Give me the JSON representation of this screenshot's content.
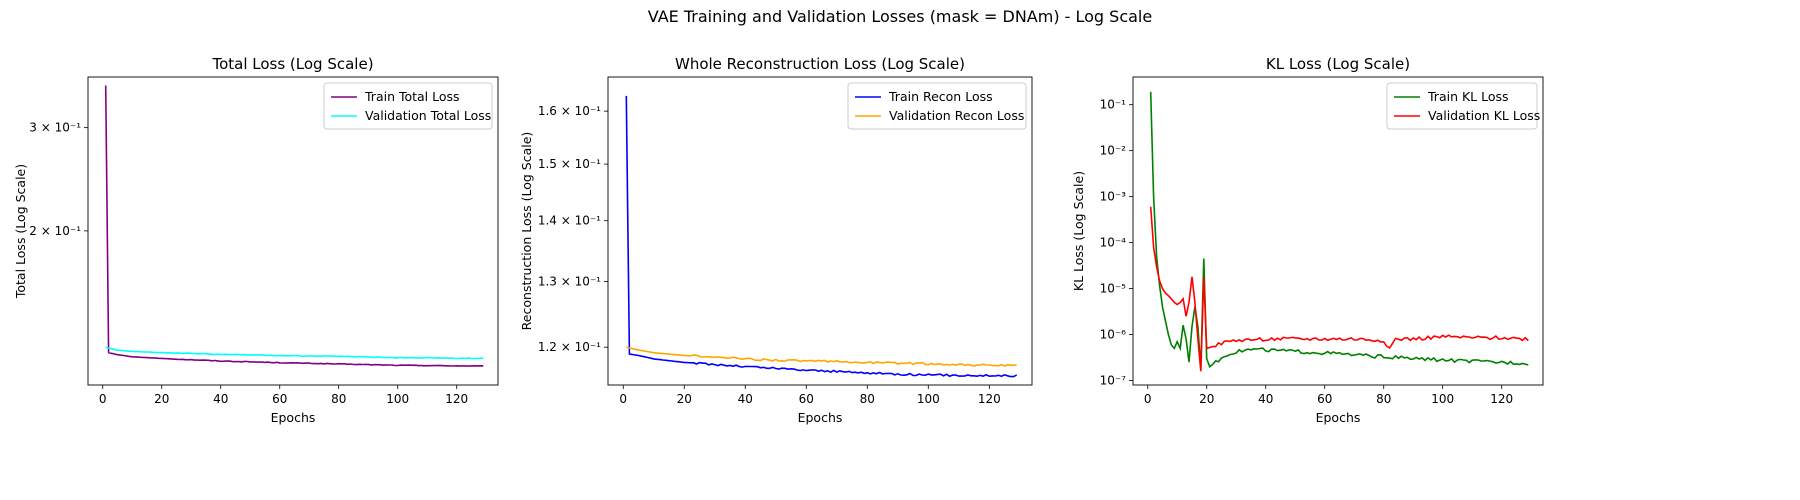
{
  "figure": {
    "suptitle": "VAE Training and Validation Losses (mask = DNAm) - Log Scale"
  },
  "chart_data": [
    {
      "type": "line",
      "title": "Total Loss (Log Scale)",
      "xlabel": "Epochs",
      "ylabel": "Total Loss (Log Scale)",
      "yscale": "log",
      "xlim": [
        -5,
        134
      ],
      "ylim": [
        0.1092,
        0.366
      ],
      "xticks": [
        0,
        20,
        40,
        60,
        80,
        100,
        120
      ],
      "yticks": [
        {
          "value": 0.2,
          "label": "2 × 10⁻¹"
        },
        {
          "value": 0.3,
          "label": "3 × 10⁻¹"
        }
      ],
      "legend": "upper right",
      "series": [
        {
          "name": "Train Total Loss",
          "color": "#800080",
          "keypoints": [
            [
              1,
              0.354
            ],
            [
              2,
              0.124
            ],
            [
              5,
              0.123
            ],
            [
              10,
              0.122
            ],
            [
              20,
              0.1212
            ],
            [
              40,
              0.12
            ],
            [
              60,
              0.1192
            ],
            [
              80,
              0.1186
            ],
            [
              100,
              0.118
            ],
            [
              129,
              0.1176
            ]
          ]
        },
        {
          "name": "Validation Total Loss",
          "color": "#00ffff",
          "keypoints": [
            [
              1,
              0.1266
            ],
            [
              5,
              0.1252
            ],
            [
              10,
              0.1246
            ],
            [
              20,
              0.124
            ],
            [
              40,
              0.1232
            ],
            [
              60,
              0.1226
            ],
            [
              80,
              0.1222
            ],
            [
              100,
              0.1216
            ],
            [
              129,
              0.1212
            ]
          ]
        }
      ]
    },
    {
      "type": "line",
      "title": "Whole Reconstruction Loss (Log Scale)",
      "xlabel": "Epochs",
      "ylabel": "Reconstruction Loss (Log Scale)",
      "yscale": "log",
      "xlim": [
        -5,
        134
      ],
      "ylim": [
        0.1146,
        0.1668
      ],
      "xticks": [
        0,
        20,
        40,
        60,
        80,
        100,
        120
      ],
      "yticks": [
        {
          "value": 0.12,
          "label": "1.2 × 10⁻¹"
        },
        {
          "value": 0.13,
          "label": "1.3 × 10⁻¹"
        },
        {
          "value": 0.14,
          "label": "1.4 × 10⁻¹"
        },
        {
          "value": 0.15,
          "label": "1.5 × 10⁻¹"
        },
        {
          "value": 0.16,
          "label": "1.6 × 10⁻¹"
        }
      ],
      "legend": "upper right",
      "series": [
        {
          "name": "Train Recon Loss",
          "color": "#0000ff",
          "keypoints": [
            [
              1,
              0.163
            ],
            [
              2,
              0.119
            ],
            [
              5,
              0.1188
            ],
            [
              10,
              0.1183
            ],
            [
              20,
              0.1178
            ],
            [
              40,
              0.1172
            ],
            [
              60,
              0.1167
            ],
            [
              80,
              0.1163
            ],
            [
              100,
              0.116
            ],
            [
              129,
              0.1159
            ]
          ]
        },
        {
          "name": "Validation Recon Loss",
          "color": "#ffa500",
          "keypoints": [
            [
              1,
              0.12
            ],
            [
              5,
              0.1196
            ],
            [
              10,
              0.1192
            ],
            [
              20,
              0.1188
            ],
            [
              40,
              0.1183
            ],
            [
              60,
              0.118
            ],
            [
              80,
              0.1178
            ],
            [
              100,
              0.1176
            ],
            [
              129,
              0.1173
            ]
          ]
        }
      ]
    },
    {
      "type": "line",
      "title": "KL Loss (Log Scale)",
      "xlabel": "Epochs",
      "ylabel": "KL Loss (Log Scale)",
      "yscale": "log",
      "xlim": [
        -5,
        134
      ],
      "ylim": [
        8e-08,
        0.4
      ],
      "xticks": [
        0,
        20,
        40,
        60,
        80,
        100,
        120
      ],
      "yticks": [
        {
          "value": 1e-07,
          "label": "10⁻⁷"
        },
        {
          "value": 1e-06,
          "label": "10⁻⁶"
        },
        {
          "value": 1e-05,
          "label": "10⁻⁵"
        },
        {
          "value": 0.0001,
          "label": "10⁻⁴"
        },
        {
          "value": 0.001,
          "label": "10⁻³"
        },
        {
          "value": 0.01,
          "label": "10⁻²"
        },
        {
          "value": 0.1,
          "label": "10⁻¹"
        }
      ],
      "legend": "upper right",
      "series": [
        {
          "name": "Train KL Loss",
          "color": "#008000",
          "keypoints": [
            [
              1,
              0.19
            ],
            [
              2,
              0.001
            ],
            [
              3,
              5e-05
            ],
            [
              4,
              1.2e-05
            ],
            [
              5,
              4e-06
            ],
            [
              6,
              2e-06
            ],
            [
              7,
              1e-06
            ],
            [
              8,
              6e-07
            ],
            [
              9,
              5e-07
            ],
            [
              10,
              7e-07
            ],
            [
              11,
              5e-07
            ],
            [
              12,
              1.6e-06
            ],
            [
              13,
              8e-07
            ],
            [
              14,
              2.5e-07
            ],
            [
              15,
              1.5e-06
            ],
            [
              16,
              4e-06
            ],
            [
              17,
              1.5e-06
            ],
            [
              18,
              1.8e-07
            ],
            [
              19,
              4.5e-05
            ],
            [
              20,
              3e-07
            ],
            [
              21,
              2e-07
            ],
            [
              24,
              2.8e-07
            ],
            [
              28,
              4e-07
            ],
            [
              35,
              4.8e-07
            ],
            [
              40,
              4.7e-07
            ],
            [
              50,
              4.3e-07
            ],
            [
              60,
              4e-07
            ],
            [
              70,
              3.6e-07
            ],
            [
              80,
              3.3e-07
            ],
            [
              90,
              3e-07
            ],
            [
              100,
              2.8e-07
            ],
            [
              110,
              2.6e-07
            ],
            [
              120,
              2.5e-07
            ],
            [
              129,
              2.4e-07
            ]
          ]
        },
        {
          "name": "Validation KL Loss",
          "color": "#ff0000",
          "keypoints": [
            [
              1,
              0.0006
            ],
            [
              2,
              8e-05
            ],
            [
              3,
              3e-05
            ],
            [
              4,
              1.5e-05
            ],
            [
              5,
              1e-05
            ],
            [
              6,
              8e-06
            ],
            [
              7,
              7e-06
            ],
            [
              8,
              6e-06
            ],
            [
              9,
              5e-06
            ],
            [
              10,
              4.5e-06
            ],
            [
              11,
              5e-06
            ],
            [
              12,
              6e-06
            ],
            [
              13,
              2.5e-06
            ],
            [
              14,
              5e-06
            ],
            [
              15,
              1.8e-05
            ],
            [
              16,
              5e-06
            ],
            [
              17,
              8e-07
            ],
            [
              18,
              1.6e-07
            ],
            [
              19,
              1.8e-05
            ],
            [
              20,
              5e-07
            ],
            [
              22,
              5.5e-07
            ],
            [
              25,
              6.5e-07
            ],
            [
              30,
              7.5e-07
            ],
            [
              40,
              8e-07
            ],
            [
              50,
              8e-07
            ],
            [
              60,
              8e-07
            ],
            [
              70,
              8e-07
            ],
            [
              80,
              7.5e-07
            ],
            [
              82,
              5e-07
            ],
            [
              84,
              8e-07
            ],
            [
              90,
              8e-07
            ],
            [
              100,
              9e-07
            ],
            [
              110,
              8.5e-07
            ],
            [
              120,
              8.5e-07
            ],
            [
              129,
              8e-07
            ]
          ]
        }
      ]
    }
  ]
}
